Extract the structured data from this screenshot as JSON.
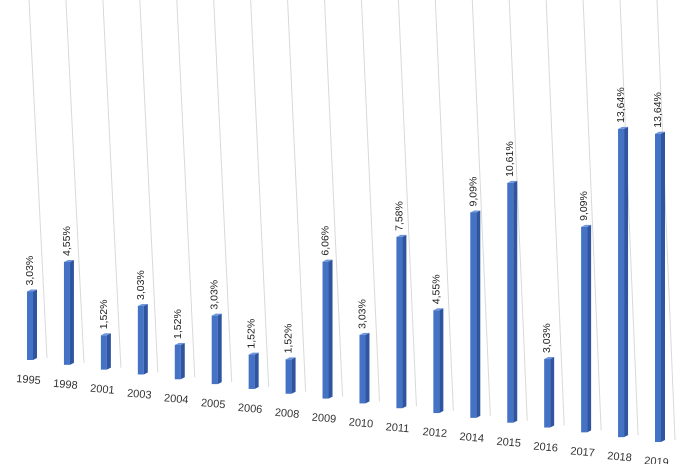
{
  "chart_data": {
    "type": "bar",
    "title": "",
    "xlabel": "",
    "ylabel": "",
    "grid": true,
    "categories": [
      "1995",
      "1998",
      "2001",
      "2003",
      "2004",
      "2005",
      "2006",
      "2008",
      "2009",
      "2010",
      "2011",
      "2012",
      "2014",
      "2015",
      "2016",
      "2017",
      "2018",
      "2019"
    ],
    "values": [
      3.03,
      4.55,
      1.52,
      3.03,
      1.52,
      3.03,
      1.52,
      1.52,
      6.06,
      3.03,
      7.58,
      4.55,
      9.09,
      10.61,
      3.03,
      9.09,
      13.64,
      13.64
    ],
    "value_labels": [
      "3,03%",
      "4,55%",
      "1,52%",
      "3,03%",
      "1,52%",
      "3,03%",
      "1,52%",
      "1,52%",
      "6,06%",
      "3,03%",
      "7,58%",
      "4,55%",
      "9,09%",
      "10,61%",
      "3,03%",
      "9,09%",
      "13,64%",
      "13,64%"
    ],
    "ylim": [
      0,
      14.5
    ],
    "colors": {
      "bar_front": "#4472c4",
      "bar_side": "#2f55a0",
      "bar_top": "#6f95dd",
      "grid": "#d9d9d9"
    }
  }
}
